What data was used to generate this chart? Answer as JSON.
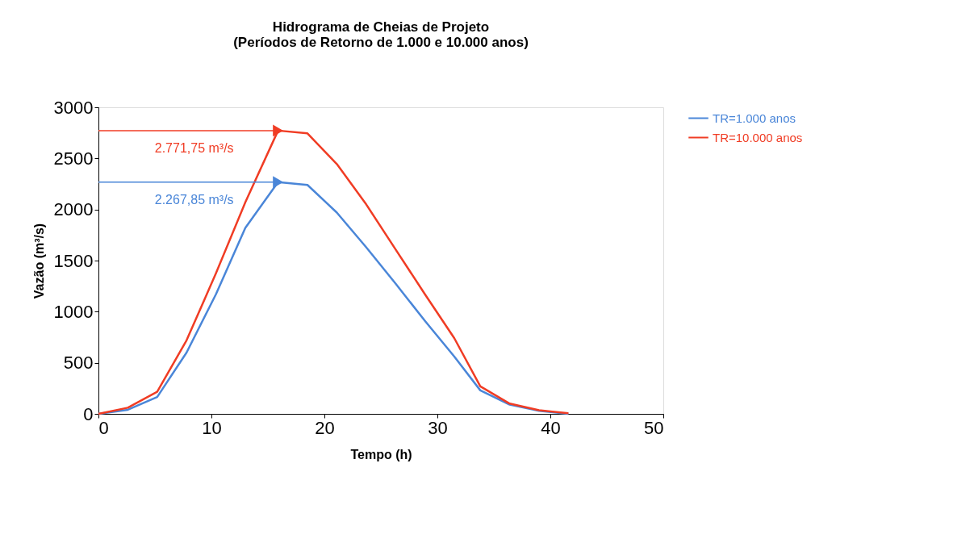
{
  "chart_data": {
    "type": "line",
    "title": [
      "Hidrograma de Cheias de Projeto",
      "(Períodos de Retorno de 1.000 e 10.000 anos)"
    ],
    "xlabel": "Tempo (h)",
    "ylabel": "Vazão (m³/s)",
    "x": [
      0,
      2.6,
      5.2,
      7.8,
      10.4,
      13.0,
      15.9,
      18.5,
      21.1,
      23.7,
      26.3,
      28.9,
      31.5,
      33.8,
      36.4,
      39.0,
      41.6
    ],
    "series": [
      {
        "name": "TR=1.000 anos",
        "color": "#4a86d8",
        "values": [
          0,
          40,
          165,
          600,
          1170,
          1820,
          2268,
          2240,
          1970,
          1630,
          1275,
          910,
          560,
          230,
          90,
          30,
          0
        ]
      },
      {
        "name": "TR=10.000 anos",
        "color": "#f03c24",
        "values": [
          0,
          60,
          216,
          720,
          1375,
          2070,
          2772,
          2745,
          2445,
          2050,
          1610,
          1170,
          740,
          270,
          100,
          35,
          5
        ]
      }
    ],
    "ref_lines": [
      {
        "axis": "y",
        "value": 2267.85,
        "label": "2.267,85 m³/s",
        "color": "#4a86d8"
      },
      {
        "axis": "y",
        "value": 2771.75,
        "label": "2.771,75 m³/s",
        "color": "#f03c24"
      }
    ],
    "xlim": [
      0,
      50
    ],
    "xticks": [
      0,
      10,
      20,
      30,
      40,
      50
    ],
    "ylim": [
      0,
      3000
    ],
    "yticks": [
      0,
      500,
      1000,
      1500,
      2000,
      2500,
      3000
    ],
    "grid": false,
    "legend": "right",
    "marker": "none",
    "line_style": "solid"
  }
}
